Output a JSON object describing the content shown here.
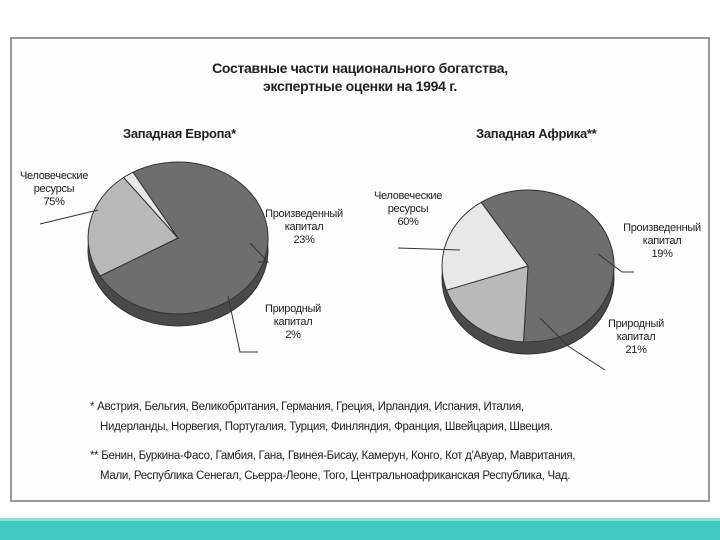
{
  "title_lines": [
    "Составные части национального богатства,",
    "экспертные оценки на 1994 г."
  ],
  "chart_data": [
    {
      "type": "pie",
      "title": "Западная Европа*",
      "slices": [
        {
          "label": [
            "Человеческие",
            "ресурсы"
          ],
          "value": 75,
          "value_text": "75%",
          "color": "#6e6e6e"
        },
        {
          "label": [
            "Произведенный",
            "капитал"
          ],
          "value": 23,
          "value_text": "23%",
          "color": "#b9b9b9"
        },
        {
          "label": [
            "Природный",
            "капитал"
          ],
          "value": 2,
          "value_text": "2%",
          "color": "#e8e8e8"
        }
      ]
    },
    {
      "type": "pie",
      "title": "Западная Африка**",
      "slices": [
        {
          "label": [
            "Человеческие",
            "ресурсы"
          ],
          "value": 60,
          "value_text": "60%",
          "color": "#6e6e6e"
        },
        {
          "label": [
            "Произведенный",
            "капитал"
          ],
          "value": 19,
          "value_text": "19%",
          "color": "#b9b9b9"
        },
        {
          "label": [
            "Природный",
            "капитал"
          ],
          "value": 21,
          "value_text": "21%",
          "color": "#e8e8e8"
        }
      ]
    }
  ],
  "footnotes": [
    [
      "* Австрия, Бельгия, Великобритания, Германия, Греция, Ирландия, Испания, Италия,",
      "Нидерланды, Норвегия, Португалия, Турция, Финляндия, Франция, Швейцария, Швеция."
    ],
    [
      "** Бенин, Буркина-Фасо, Гамбия, Гана, Гвинея-Бисау, Камерун, Конго, Кот д'Авуар, Мавритания,",
      "Мали, Республика Сенегал, Сьерра-Леоне, Того, Центральноафриканская Республика, Чад."
    ]
  ],
  "colors": {
    "accent_band": "#3ec9c1",
    "frame_border": "#9a9a9a"
  }
}
